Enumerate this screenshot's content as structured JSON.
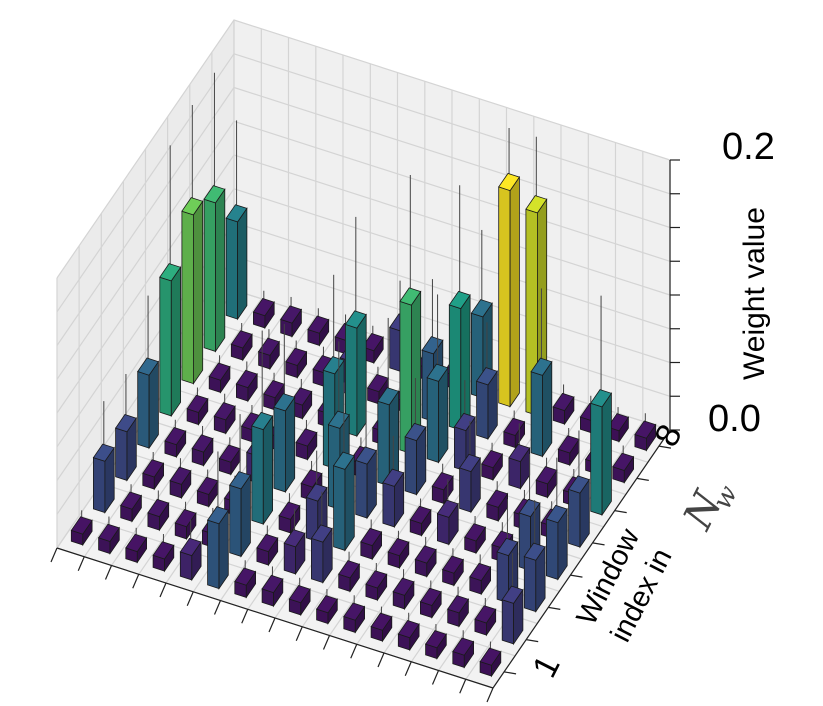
{
  "chart_data": {
    "type": "bar3d",
    "zlabel": "Weight value",
    "ylabel_line1": "Window",
    "ylabel_line2": "index in",
    "ylabel_math": "N",
    "ylabel_math_sub": "w",
    "z_ticks": [
      "0.0",
      "0.2"
    ],
    "zlim": [
      0,
      0.2
    ],
    "y_ticks": {
      "first": "1",
      "last": "8"
    },
    "n_x": 16,
    "n_y": 8,
    "grid": true,
    "colormap": "viridis",
    "z_at_row8_top": 0.2,
    "bars": [
      {
        "x": 0,
        "y": 0,
        "z": 0.008
      },
      {
        "x": 1,
        "y": 0,
        "z": 0.009
      },
      {
        "x": 2,
        "y": 0,
        "z": 0.008
      },
      {
        "x": 3,
        "y": 0,
        "z": 0.009
      },
      {
        "x": 4,
        "y": 0,
        "z": 0.018
      },
      {
        "x": 5,
        "y": 0,
        "z": 0.048
      },
      {
        "x": 6,
        "y": 0,
        "z": 0.009
      },
      {
        "x": 7,
        "y": 0,
        "z": 0.01
      },
      {
        "x": 8,
        "y": 0,
        "z": 0.009
      },
      {
        "x": 9,
        "y": 0,
        "z": 0.008
      },
      {
        "x": 10,
        "y": 0,
        "z": 0.009
      },
      {
        "x": 11,
        "y": 0,
        "z": 0.008
      },
      {
        "x": 12,
        "y": 0,
        "z": 0.009
      },
      {
        "x": 13,
        "y": 0,
        "z": 0.008
      },
      {
        "x": 14,
        "y": 0,
        "z": 0.009
      },
      {
        "x": 15,
        "y": 0,
        "z": 0.008
      },
      {
        "x": 0,
        "y": 1,
        "z": 0.038
      },
      {
        "x": 1,
        "y": 1,
        "z": 0.009
      },
      {
        "x": 2,
        "y": 1,
        "z": 0.01
      },
      {
        "x": 3,
        "y": 1,
        "z": 0.009
      },
      {
        "x": 4,
        "y": 1,
        "z": 0.01
      },
      {
        "x": 5,
        "y": 1,
        "z": 0.05
      },
      {
        "x": 6,
        "y": 1,
        "z": 0.01
      },
      {
        "x": 7,
        "y": 1,
        "z": 0.02
      },
      {
        "x": 8,
        "y": 1,
        "z": 0.03
      },
      {
        "x": 9,
        "y": 1,
        "z": 0.01
      },
      {
        "x": 10,
        "y": 1,
        "z": 0.009
      },
      {
        "x": 11,
        "y": 1,
        "z": 0.01
      },
      {
        "x": 12,
        "y": 1,
        "z": 0.009
      },
      {
        "x": 13,
        "y": 1,
        "z": 0.01
      },
      {
        "x": 14,
        "y": 1,
        "z": 0.009
      },
      {
        "x": 15,
        "y": 1,
        "z": 0.03
      },
      {
        "x": 0,
        "y": 2,
        "z": 0.036
      },
      {
        "x": 1,
        "y": 2,
        "z": 0.009
      },
      {
        "x": 2,
        "y": 2,
        "z": 0.01
      },
      {
        "x": 3,
        "y": 2,
        "z": 0.009
      },
      {
        "x": 4,
        "y": 2,
        "z": 0.01
      },
      {
        "x": 5,
        "y": 2,
        "z": 0.07
      },
      {
        "x": 6,
        "y": 2,
        "z": 0.01
      },
      {
        "x": 7,
        "y": 2,
        "z": 0.03
      },
      {
        "x": 8,
        "y": 2,
        "z": 0.06
      },
      {
        "x": 9,
        "y": 2,
        "z": 0.01
      },
      {
        "x": 10,
        "y": 2,
        "z": 0.009
      },
      {
        "x": 11,
        "y": 2,
        "z": 0.01
      },
      {
        "x": 12,
        "y": 2,
        "z": 0.009
      },
      {
        "x": 13,
        "y": 2,
        "z": 0.01
      },
      {
        "x": 14,
        "y": 2,
        "z": 0.035
      },
      {
        "x": 15,
        "y": 2,
        "z": 0.038
      },
      {
        "x": 0,
        "y": 3,
        "z": 0.054
      },
      {
        "x": 1,
        "y": 3,
        "z": 0.009
      },
      {
        "x": 2,
        "y": 3,
        "z": 0.01
      },
      {
        "x": 3,
        "y": 3,
        "z": 0.009
      },
      {
        "x": 4,
        "y": 3,
        "z": 0.02
      },
      {
        "x": 5,
        "y": 3,
        "z": 0.06
      },
      {
        "x": 6,
        "y": 3,
        "z": 0.01
      },
      {
        "x": 7,
        "y": 3,
        "z": 0.06
      },
      {
        "x": 8,
        "y": 3,
        "z": 0.04
      },
      {
        "x": 9,
        "y": 3,
        "z": 0.03
      },
      {
        "x": 10,
        "y": 3,
        "z": 0.009
      },
      {
        "x": 11,
        "y": 3,
        "z": 0.02
      },
      {
        "x": 12,
        "y": 3,
        "z": 0.009
      },
      {
        "x": 13,
        "y": 3,
        "z": 0.01
      },
      {
        "x": 14,
        "y": 3,
        "z": 0.04
      },
      {
        "x": 15,
        "y": 3,
        "z": 0.042
      },
      {
        "x": 0,
        "y": 4,
        "z": 0.1
      },
      {
        "x": 1,
        "y": 4,
        "z": 0.009
      },
      {
        "x": 2,
        "y": 4,
        "z": 0.01
      },
      {
        "x": 3,
        "y": 4,
        "z": 0.009
      },
      {
        "x": 4,
        "y": 4,
        "z": 0.01
      },
      {
        "x": 5,
        "y": 4,
        "z": 0.01
      },
      {
        "x": 6,
        "y": 4,
        "z": 0.07
      },
      {
        "x": 7,
        "y": 4,
        "z": 0.01
      },
      {
        "x": 8,
        "y": 4,
        "z": 0.06
      },
      {
        "x": 9,
        "y": 4,
        "z": 0.04
      },
      {
        "x": 10,
        "y": 4,
        "z": 0.01
      },
      {
        "x": 11,
        "y": 4,
        "z": 0.03
      },
      {
        "x": 12,
        "y": 4,
        "z": 0.01
      },
      {
        "x": 13,
        "y": 4,
        "z": 0.01
      },
      {
        "x": 14,
        "y": 4,
        "z": 0.009
      },
      {
        "x": 15,
        "y": 4,
        "z": 0.04
      },
      {
        "x": 0,
        "y": 5,
        "z": 0.125
      },
      {
        "x": 1,
        "y": 5,
        "z": 0.009
      },
      {
        "x": 2,
        "y": 5,
        "z": 0.01
      },
      {
        "x": 3,
        "y": 5,
        "z": 0.009
      },
      {
        "x": 4,
        "y": 5,
        "z": 0.01
      },
      {
        "x": 5,
        "y": 5,
        "z": 0.01
      },
      {
        "x": 6,
        "y": 5,
        "z": 0.08
      },
      {
        "x": 7,
        "y": 5,
        "z": 0.01
      },
      {
        "x": 8,
        "y": 5,
        "z": 0.11
      },
      {
        "x": 9,
        "y": 5,
        "z": 0.06
      },
      {
        "x": 10,
        "y": 5,
        "z": 0.03
      },
      {
        "x": 11,
        "y": 5,
        "z": 0.009
      },
      {
        "x": 12,
        "y": 5,
        "z": 0.02
      },
      {
        "x": 13,
        "y": 5,
        "z": 0.01
      },
      {
        "x": 14,
        "y": 5,
        "z": 0.009
      },
      {
        "x": 15,
        "y": 5,
        "z": 0.08
      },
      {
        "x": 0,
        "y": 6,
        "z": 0.11
      },
      {
        "x": 1,
        "y": 6,
        "z": 0.009
      },
      {
        "x": 2,
        "y": 6,
        "z": 0.01
      },
      {
        "x": 3,
        "y": 6,
        "z": 0.009
      },
      {
        "x": 4,
        "y": 6,
        "z": 0.01
      },
      {
        "x": 5,
        "y": 6,
        "z": 0.025
      },
      {
        "x": 6,
        "y": 6,
        "z": 0.009
      },
      {
        "x": 7,
        "y": 6,
        "z": 0.008
      },
      {
        "x": 8,
        "y": 6,
        "z": 0.05
      },
      {
        "x": 9,
        "y": 6,
        "z": 0.09
      },
      {
        "x": 10,
        "y": 6,
        "z": 0.04
      },
      {
        "x": 11,
        "y": 6,
        "z": 0.009
      },
      {
        "x": 12,
        "y": 6,
        "z": 0.06
      },
      {
        "x": 13,
        "y": 6,
        "z": 0.009
      },
      {
        "x": 14,
        "y": 6,
        "z": 0.008
      },
      {
        "x": 15,
        "y": 6,
        "z": 0.009
      },
      {
        "x": 0,
        "y": 7,
        "z": 0.072
      },
      {
        "x": 1,
        "y": 7,
        "z": 0.009
      },
      {
        "x": 2,
        "y": 7,
        "z": 0.01
      },
      {
        "x": 3,
        "y": 7,
        "z": 0.009
      },
      {
        "x": 4,
        "y": 7,
        "z": 0.01
      },
      {
        "x": 5,
        "y": 7,
        "z": 0.009
      },
      {
        "x": 6,
        "y": 7,
        "z": 0.03
      },
      {
        "x": 7,
        "y": 7,
        "z": 0.009
      },
      {
        "x": 8,
        "y": 7,
        "z": 0.01
      },
      {
        "x": 9,
        "y": 7,
        "z": 0.06
      },
      {
        "x": 10,
        "y": 7,
        "z": 0.16
      },
      {
        "x": 11,
        "y": 7,
        "z": 0.15
      },
      {
        "x": 12,
        "y": 7,
        "z": 0.01
      },
      {
        "x": 13,
        "y": 7,
        "z": 0.009
      },
      {
        "x": 14,
        "y": 7,
        "z": 0.008
      },
      {
        "x": 15,
        "y": 7,
        "z": 0.009
      }
    ]
  }
}
